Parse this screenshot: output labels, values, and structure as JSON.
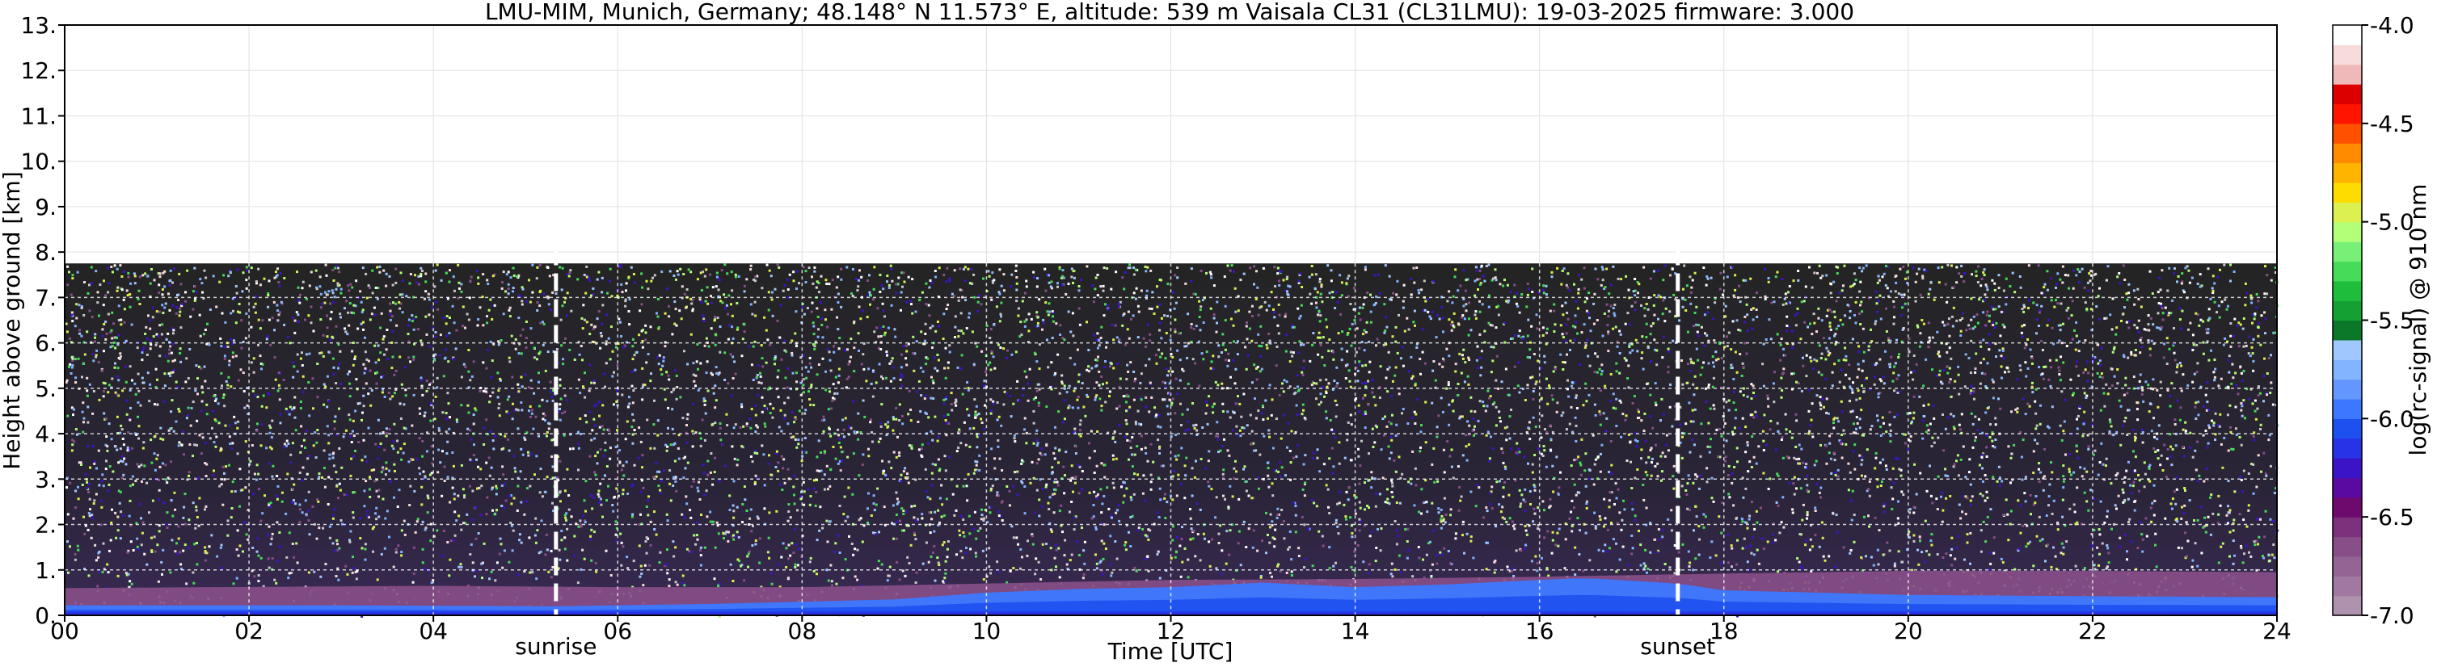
{
  "chart_data": {
    "type": "heatmap",
    "title": "LMU-MIM, Munich, Germany; 48.148° N 11.573° E, altitude: 539 m    Vaisala CL31 (CL31LMU): 19-03-2025    firmware: 3.000",
    "xlabel": "Time [UTC]",
    "ylabel": "Height above ground [km]",
    "xlim": [
      0,
      24
    ],
    "ylim": [
      0,
      13
    ],
    "x_ticks": [
      "00",
      "02",
      "04",
      "06",
      "08",
      "10",
      "12",
      "14",
      "16",
      "18",
      "20",
      "22",
      "24"
    ],
    "y_ticks": [
      "0.",
      "1.",
      "2.",
      "3.",
      "4.",
      "5.",
      "6.",
      "7.",
      "8.",
      "9.",
      "10.",
      "11.",
      "12.",
      "13."
    ],
    "grid": true,
    "data_top_height_km": 7.75,
    "colorbar": {
      "label": "log(rc-signal) @ 910 nm",
      "range": [
        -7.0,
        -4.0
      ],
      "ticks": [
        "-4.0",
        "-4.5",
        "-5.0",
        "-5.5",
        "-6.0",
        "-6.5",
        "-7.0"
      ],
      "colors": [
        "#ae92ae",
        "#a078a0",
        "#946494",
        "#884e88",
        "#7d317d",
        "#6e0a6e",
        "#5a0aa0",
        "#3c14c8",
        "#2832e6",
        "#1e50f0",
        "#3c78ff",
        "#6496ff",
        "#82b4ff",
        "#a0c8ff",
        "#0a7828",
        "#14a032",
        "#1ebe3c",
        "#46dc5a",
        "#78f078",
        "#b4ff78",
        "#dcf050",
        "#ffdc00",
        "#ffb400",
        "#ff8c00",
        "#ff5000",
        "#ff1400",
        "#dc0000",
        "#f0b9b9",
        "#f7dcdc",
        "#ffffff"
      ]
    },
    "events": [
      {
        "label": "sunrise",
        "time_utc": 5.33
      },
      {
        "label": "sunset",
        "time_utc": 17.5
      }
    ],
    "boundary_layer": [
      {
        "time_utc": 0,
        "height_km": 0.22
      },
      {
        "time_utc": 3,
        "height_km": 0.22
      },
      {
        "time_utc": 5.3,
        "height_km": 0.2
      },
      {
        "time_utc": 7,
        "height_km": 0.25
      },
      {
        "time_utc": 9,
        "height_km": 0.35
      },
      {
        "time_utc": 10,
        "height_km": 0.5
      },
      {
        "time_utc": 11,
        "height_km": 0.58
      },
      {
        "time_utc": 12,
        "height_km": 0.62
      },
      {
        "time_utc": 13,
        "height_km": 0.72
      },
      {
        "time_utc": 14,
        "height_km": 0.62
      },
      {
        "time_utc": 15,
        "height_km": 0.68
      },
      {
        "time_utc": 16,
        "height_km": 0.78
      },
      {
        "time_utc": 16.5,
        "height_km": 0.82
      },
      {
        "time_utc": 17.5,
        "height_km": 0.7
      },
      {
        "time_utc": 18,
        "height_km": 0.55
      },
      {
        "time_utc": 20,
        "height_km": 0.45
      },
      {
        "time_utc": 22,
        "height_km": 0.42
      },
      {
        "time_utc": 24,
        "height_km": 0.4
      }
    ],
    "residual_layer": [
      {
        "time_utc": 0,
        "height_km": 0.6
      },
      {
        "time_utc": 4,
        "height_km": 0.65
      },
      {
        "time_utc": 6,
        "height_km": 0.62
      },
      {
        "time_utc": 8,
        "height_km": 0.62
      },
      {
        "time_utc": 10,
        "height_km": 0.7
      },
      {
        "time_utc": 12,
        "height_km": 0.78
      },
      {
        "time_utc": 14,
        "height_km": 0.8
      },
      {
        "time_utc": 16,
        "height_km": 0.85
      },
      {
        "time_utc": 18,
        "height_km": 0.92
      },
      {
        "time_utc": 20,
        "height_km": 0.98
      },
      {
        "time_utc": 22,
        "height_km": 0.98
      },
      {
        "time_utc": 24,
        "height_km": 0.95
      }
    ]
  }
}
